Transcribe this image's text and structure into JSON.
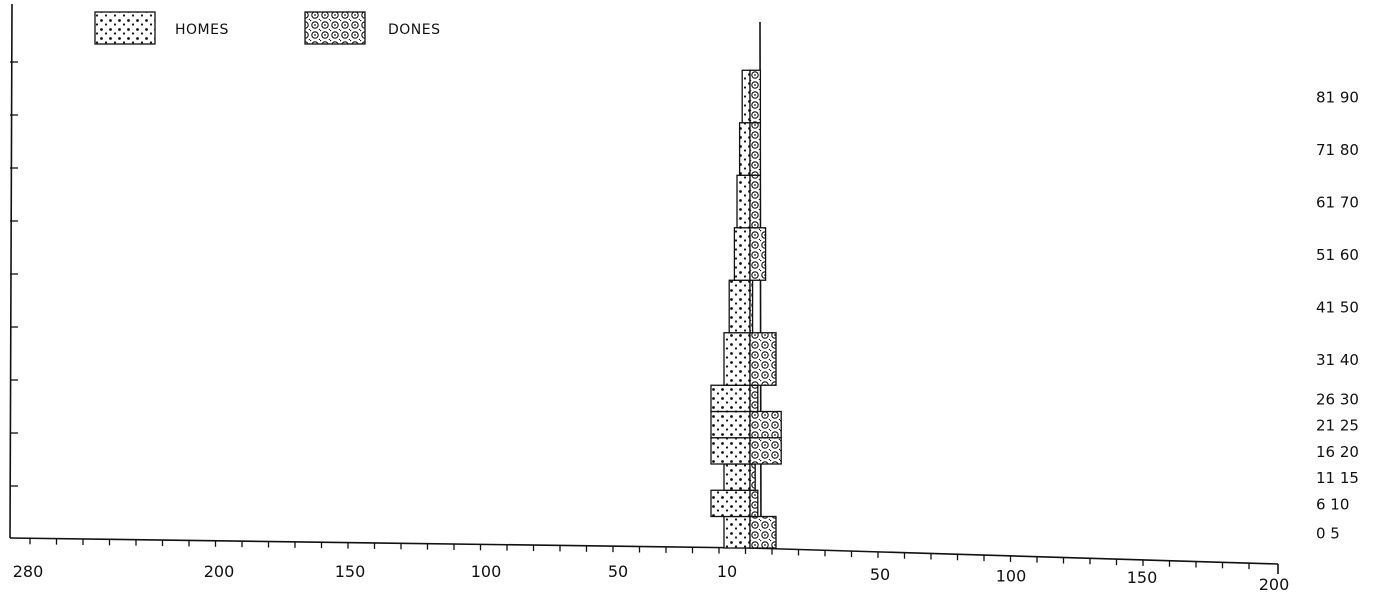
{
  "chart_data": {
    "type": "bar",
    "orientation": "horizontal-pyramid",
    "legend": {
      "placement": "top-left",
      "entries": [
        {
          "name": "HOMES",
          "side": "left",
          "pattern": "dots"
        },
        {
          "name": "DONES",
          "side": "right",
          "pattern": "circles"
        }
      ]
    },
    "left_axis_ticks": [
      "280",
      "200",
      "150",
      "100",
      "50",
      "10"
    ],
    "right_axis_ticks": [
      "50",
      "100",
      "150",
      "200"
    ],
    "categories": [
      "0 5",
      "6 10",
      "11 15",
      "16 20",
      "21 25",
      "26 30",
      "31 40",
      "41 50",
      "51 60",
      "61 70",
      "71 80",
      "81 90"
    ],
    "series": [
      {
        "name": "HOMES",
        "values": [
          10,
          15,
          10,
          15,
          15,
          15,
          10,
          8,
          6,
          5,
          4,
          3
        ]
      },
      {
        "name": "DONES",
        "values": [
          10,
          3,
          2,
          12,
          12,
          3,
          10,
          1,
          6,
          4,
          4,
          4
        ]
      }
    ],
    "grid": false
  }
}
